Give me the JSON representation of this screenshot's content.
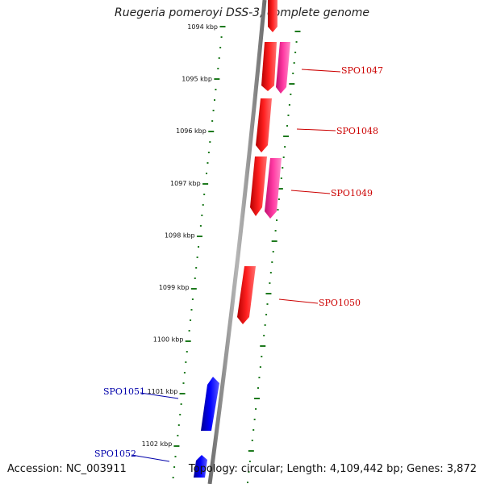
{
  "title": "Ruegeria pomeroyi DSS-3, complete genome",
  "accession": "Accession: NC_003911",
  "topology": "Topology: circular; Length: 4,109,442 bp; Genes: 3,872",
  "colors": {
    "backbone": "#888888",
    "ticks": "#1e7a1e",
    "forward_gene": "#ff0000",
    "forward_gene_alt": "#ff2a9a",
    "reverse_gene": "#0000ff",
    "forward_label": "#cc0000",
    "reverse_label": "#0000aa"
  },
  "tick_labels": [
    "1094 kbp",
    "1095 kbp",
    "1096 kbp",
    "1097 kbp",
    "1098 kbp",
    "1099 kbp",
    "1100 kbp",
    "1101 kbp",
    "1102 kbp"
  ],
  "gene_labels": [
    {
      "name": "SPO1047",
      "strand": "forward"
    },
    {
      "name": "SPO1048",
      "strand": "forward"
    },
    {
      "name": "SPO1049",
      "strand": "forward"
    },
    {
      "name": "SPO1050",
      "strand": "forward"
    },
    {
      "name": "SPO1051",
      "strand": "reverse"
    },
    {
      "name": "SPO1052",
      "strand": "reverse"
    }
  ]
}
